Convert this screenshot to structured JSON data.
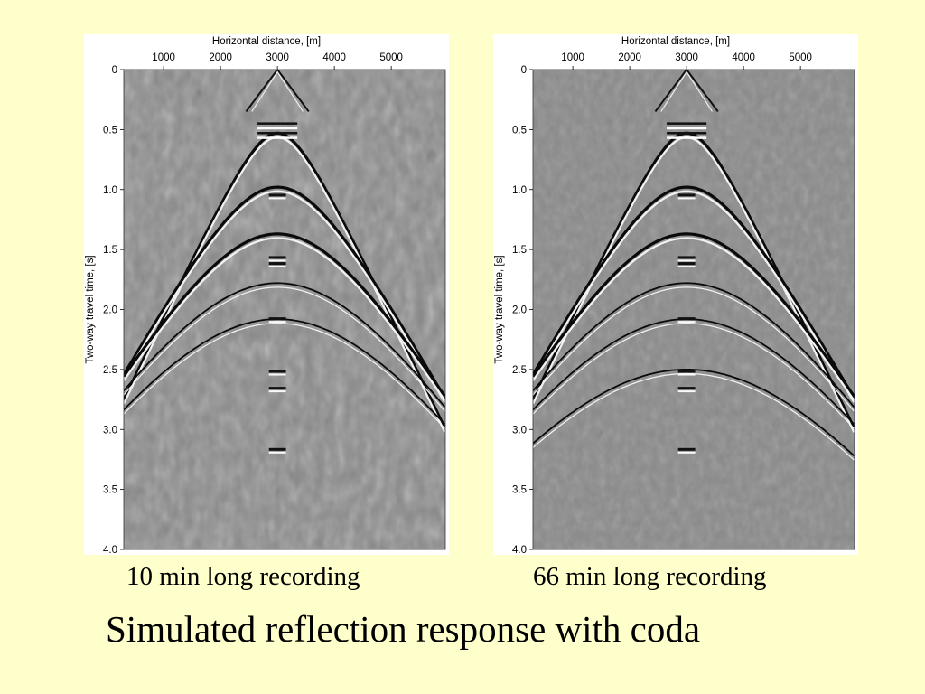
{
  "slide": {
    "title": "Simulated reflection response with coda"
  },
  "colors": {
    "background": "#ffffcc",
    "seismic_gray": "#8a8a8a"
  },
  "chart_data": [
    {
      "type": "heatmap",
      "caption": "10 min long recording",
      "xlabel": "Horizontal distance, [m]",
      "ylabel": "Two-way travel time, [s]",
      "x_ticks": [
        "1000",
        "2000",
        "3000",
        "4000",
        "5000"
      ],
      "y_ticks": [
        "0",
        "0.5",
        "1.0",
        "1.5",
        "2.0",
        "2.5",
        "3.0",
        "3.5",
        "4.0"
      ],
      "xlim": [
        300,
        5950
      ],
      "ylim": [
        0,
        4.0
      ],
      "noise_level": "high",
      "source_x": 3000,
      "events": [
        {
          "kind": "direct-wave",
          "t0": 0.0,
          "v": 2000
        },
        {
          "kind": "reflection",
          "t0": 0.53,
          "v": 2000
        },
        {
          "kind": "reflection",
          "t0": 0.98,
          "v": 2300
        },
        {
          "kind": "reflection",
          "t0": 1.37,
          "v": 2500
        },
        {
          "kind": "reflection",
          "t0": 1.78,
          "v": 2700
        },
        {
          "kind": "reflection",
          "t0": 2.08,
          "v": 2800
        }
      ],
      "spots": [
        {
          "t": 1.05
        },
        {
          "t": 1.57
        },
        {
          "t": 1.62
        },
        {
          "t": 2.08
        },
        {
          "t": 2.52
        },
        {
          "t": 2.66
        },
        {
          "t": 3.17
        }
      ]
    },
    {
      "type": "heatmap",
      "caption": "66 min long recording",
      "xlabel": "Horizontal distance, [m]",
      "ylabel": "Two-way travel time, [s]",
      "x_ticks": [
        "1000",
        "2000",
        "3000",
        "4000",
        "5000"
      ],
      "y_ticks": [
        "0",
        "0.5",
        "1.0",
        "1.5",
        "2.0",
        "2.5",
        "3.0",
        "3.5",
        "4.0"
      ],
      "xlim": [
        300,
        5950
      ],
      "ylim": [
        0,
        4.0
      ],
      "noise_level": "low",
      "source_x": 3000,
      "events": [
        {
          "kind": "direct-wave",
          "t0": 0.0,
          "v": 2000
        },
        {
          "kind": "reflection",
          "t0": 0.53,
          "v": 2000
        },
        {
          "kind": "reflection",
          "t0": 0.98,
          "v": 2300
        },
        {
          "kind": "reflection",
          "t0": 1.37,
          "v": 2500
        },
        {
          "kind": "reflection",
          "t0": 1.78,
          "v": 2700
        },
        {
          "kind": "reflection",
          "t0": 2.08,
          "v": 2800
        },
        {
          "kind": "reflection",
          "t0": 2.5,
          "v": 2900
        }
      ],
      "spots": [
        {
          "t": 1.05
        },
        {
          "t": 1.57
        },
        {
          "t": 1.62
        },
        {
          "t": 2.08
        },
        {
          "t": 2.52
        },
        {
          "t": 2.66
        },
        {
          "t": 3.17
        }
      ]
    }
  ]
}
